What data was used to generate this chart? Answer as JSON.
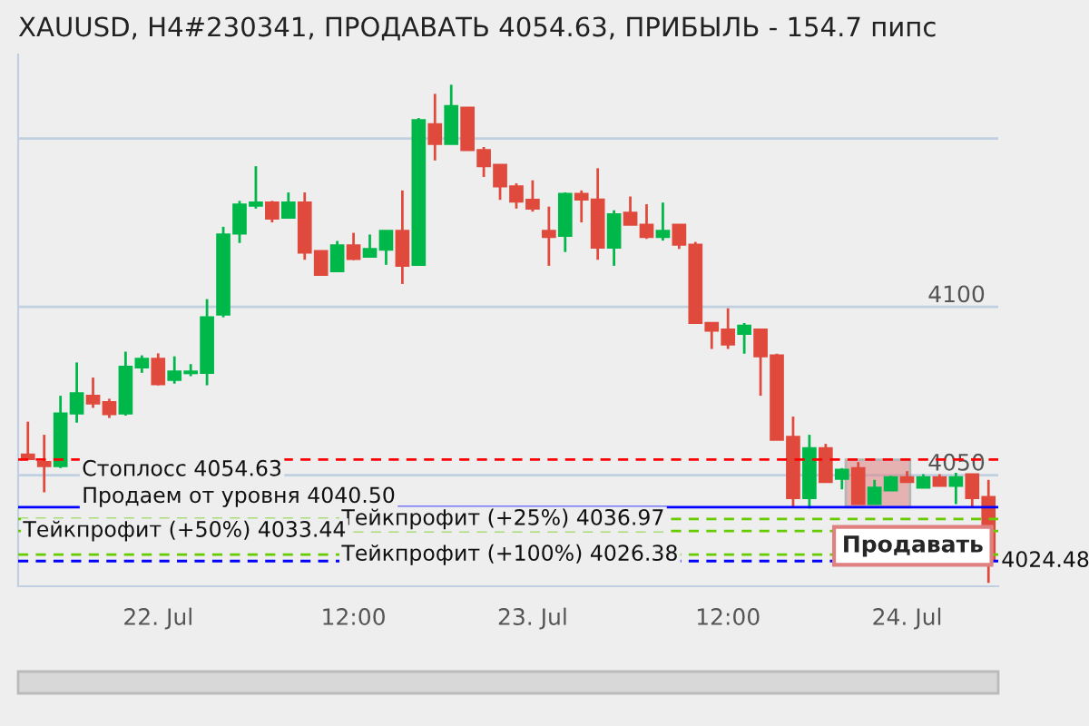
{
  "chart_data": {
    "type": "candlestick",
    "title": "XAUUSD, H4#230341, ПРОДАВАТЬ 4054.63, ПРИБЫЛЬ - 154.7 пипс",
    "categories": [
      null,
      null,
      null,
      null,
      null,
      null,
      null,
      null,
      "22. Jul",
      null,
      null,
      null,
      null,
      null,
      null,
      null,
      null,
      null,
      null,
      null,
      "12:00",
      null,
      null,
      null,
      null,
      null,
      null,
      null,
      null,
      null,
      null,
      "23. Jul",
      null,
      null,
      null,
      null,
      null,
      null,
      null,
      null,
      null,
      null,
      null,
      "12:00",
      null,
      null,
      null,
      null,
      null,
      null,
      null,
      null,
      null,
      null,
      "24. Jul",
      null,
      null,
      null,
      null,
      null
    ],
    "ohlc": [
      [
        4056.1,
        4065.9,
        4054.8,
        4054.8
      ],
      [
        4053.9,
        4062.0,
        4044.9,
        4052.7
      ],
      [
        4052.7,
        4073.6,
        4052.1,
        4068.3
      ],
      [
        4068.3,
        4083.5,
        4065.6,
        4074.3
      ],
      [
        4073.6,
        4079.0,
        4070.0,
        4071.3
      ],
      [
        4071.7,
        4072.7,
        4067.0,
        4068.1
      ],
      [
        4068.3,
        4086.7,
        4067.7,
        4082.2
      ],
      [
        4082.0,
        4085.6,
        4080.4,
        4084.6
      ],
      [
        4084.6,
        4086.2,
        4076.7,
        4077.0
      ],
      [
        4078.3,
        4085.3,
        4077.2,
        4080.8
      ],
      [
        4080.3,
        4083.0,
        4079.4,
        4080.8
      ],
      [
        4080.4,
        4102.3,
        4076.7,
        4096.9
      ],
      [
        4097.7,
        4123.8,
        4096.9,
        4121.5
      ],
      [
        4121.8,
        4131.5,
        4119.0,
        4130.4
      ],
      [
        4130.1,
        4141.8,
        4129.2,
        4131.0
      ],
      [
        4131.0,
        4131.5,
        4125.1,
        4126.2
      ],
      [
        4126.5,
        4134.0,
        4126.5,
        4131.0
      ],
      [
        4131.0,
        4134.0,
        4114.0,
        4116.1
      ],
      [
        4116.6,
        4116.6,
        4109.5,
        4109.5
      ],
      [
        4110.6,
        4119.6,
        4110.3,
        4118.3
      ],
      [
        4118.3,
        4122.0,
        4113.9,
        4114.2
      ],
      [
        4114.9,
        4121.5,
        4114.9,
        4117.2
      ],
      [
        4117.0,
        4122.6,
        4112.5,
        4122.6
      ],
      [
        4122.6,
        4134.6,
        4106.8,
        4112.2
      ],
      [
        4112.5,
        4156.1,
        4112.5,
        4155.5
      ],
      [
        4154.3,
        4163.3,
        4143.5,
        4148.4
      ],
      [
        4148.4,
        4166.0,
        4148.4,
        4159.7
      ],
      [
        4159.2,
        4159.2,
        4146.6,
        4146.6
      ],
      [
        4146.6,
        4147.5,
        4138.6,
        4141.8
      ],
      [
        4142.2,
        4142.2,
        4131.8,
        4135.8
      ],
      [
        4135.8,
        4136.7,
        4129.2,
        4131.3
      ],
      [
        4131.8,
        4137.6,
        4128.3,
        4129.2
      ],
      [
        4122.6,
        4129.8,
        4112.2,
        4120.8
      ],
      [
        4121.1,
        4134.0,
        4116.3,
        4133.6
      ],
      [
        4133.6,
        4134.6,
        4125.1,
        4131.9
      ],
      [
        4131.9,
        4141.2,
        4114.0,
        4117.6
      ],
      [
        4117.6,
        4128.7,
        4112.2,
        4127.5
      ],
      [
        4128.0,
        4132.8,
        4124.4,
        4124.4
      ],
      [
        4124.4,
        4130.5,
        4120.2,
        4120.8
      ],
      [
        4120.8,
        4131.0,
        4119.7,
        4122.6
      ],
      [
        4124.4,
        4124.4,
        4117.2,
        4118.5
      ],
      [
        4118.5,
        4119.3,
        4095.2,
        4095.2
      ],
      [
        4095.2,
        4095.2,
        4087.5,
        4092.9
      ],
      [
        4093.3,
        4099.6,
        4087.5,
        4088.8
      ],
      [
        4092.0,
        4095.2,
        4086.1,
        4094.4
      ],
      [
        4093.3,
        4093.3,
        4073.6,
        4085.3
      ],
      [
        4085.6,
        4086.1,
        4060.5,
        4060.5
      ],
      [
        4061.4,
        4067.4,
        4040.5,
        4043.2
      ],
      [
        4043.2,
        4062.0,
        4040.1,
        4058.0
      ],
      [
        4058.0,
        4059.3,
        4048.0,
        4048.0
      ],
      [
        4048.9,
        4052.1,
        4045.8,
        4051.6
      ],
      [
        4052.1,
        4053.9,
        4041.4,
        4041.4
      ],
      [
        4041.4,
        4048.6,
        4041.4,
        4046.3
      ],
      [
        4045.5,
        4049.8,
        4045.5,
        4049.4
      ],
      [
        4049.4,
        4051.2,
        4048.0,
        4048.0
      ],
      [
        4046.3,
        4050.3,
        4046.3,
        4049.4
      ],
      [
        4049.4,
        4050.3,
        4046.8,
        4046.8
      ],
      [
        4046.8,
        4050.7,
        4041.4,
        4049.4
      ],
      [
        4050.3,
        4050.3,
        4040.5,
        4043.2
      ],
      [
        4043.5,
        4048.6,
        4018.0,
        4024.5
      ]
    ],
    "colors": [
      "#e04a3c",
      "#e04a3c",
      "#00b84a",
      "#00b84a",
      "#e04a3c",
      "#e04a3c",
      "#00b84a",
      "#00b84a",
      "#e04a3c",
      "#00b84a",
      "#00b84a",
      "#00b84a",
      "#00b84a",
      "#00b84a",
      "#00b84a",
      "#e04a3c",
      "#00b84a",
      "#e04a3c",
      "#e04a3c",
      "#00b84a",
      "#e04a3c",
      "#00b84a",
      "#00b84a",
      "#e04a3c",
      "#00b84a",
      "#e04a3c",
      "#00b84a",
      "#e04a3c",
      "#e04a3c",
      "#e04a3c",
      "#e04a3c",
      "#e04a3c",
      "#e04a3c",
      "#00b84a",
      "#e04a3c",
      "#e04a3c",
      "#00b84a",
      "#e04a3c",
      "#e04a3c",
      "#00b84a",
      "#e04a3c",
      "#e04a3c",
      "#e04a3c",
      "#e04a3c",
      "#00b84a",
      "#e04a3c",
      "#e04a3c",
      "#e04a3c",
      "#00b84a",
      "#e04a3c",
      "#00b84a",
      "#e04a3c",
      "#00b84a",
      "#00b84a",
      "#e04a3c",
      "#00b84a",
      "#e04a3c",
      "#00b84a",
      "#e04a3c",
      "#e04a3c"
    ],
    "ylim": [
      4017,
      4175
    ],
    "yticks": [
      {
        "value": 4150,
        "label": null
      },
      4100,
      4050
    ],
    "grid": "y",
    "ref_lines": [
      {
        "axis": "y",
        "value": 4054.63,
        "label": "Стоплосс 4054.63",
        "color": "#ff0000",
        "line_style": "dashed"
      },
      {
        "axis": "y",
        "value": 4040.5,
        "label": "Продаем от уровня 4040.50",
        "color": "#0000ff",
        "line_style": "solid"
      },
      {
        "axis": "y",
        "value": 4036.97,
        "label": "Тейкпрофит (+25%) 4036.97",
        "color": "#66cc00",
        "line_style": "dashed"
      },
      {
        "axis": "y",
        "value": 4033.44,
        "label": "Тейкпрофит (+50%) 4033.44",
        "color": "#66cc00",
        "line_style": "dashed"
      },
      {
        "axis": "y",
        "value": 4026.38,
        "label": "Тейкпрофит (+100%) 4026.38",
        "color": "#66cc00",
        "line_style": "dashed"
      },
      {
        "axis": "y",
        "value": 4024.48,
        "label": "4024.48",
        "color": "#0000ff",
        "line_style": "dashed"
      }
    ],
    "annotations": [
      {
        "text": "Продавать",
        "y": 4029
      }
    ]
  }
}
